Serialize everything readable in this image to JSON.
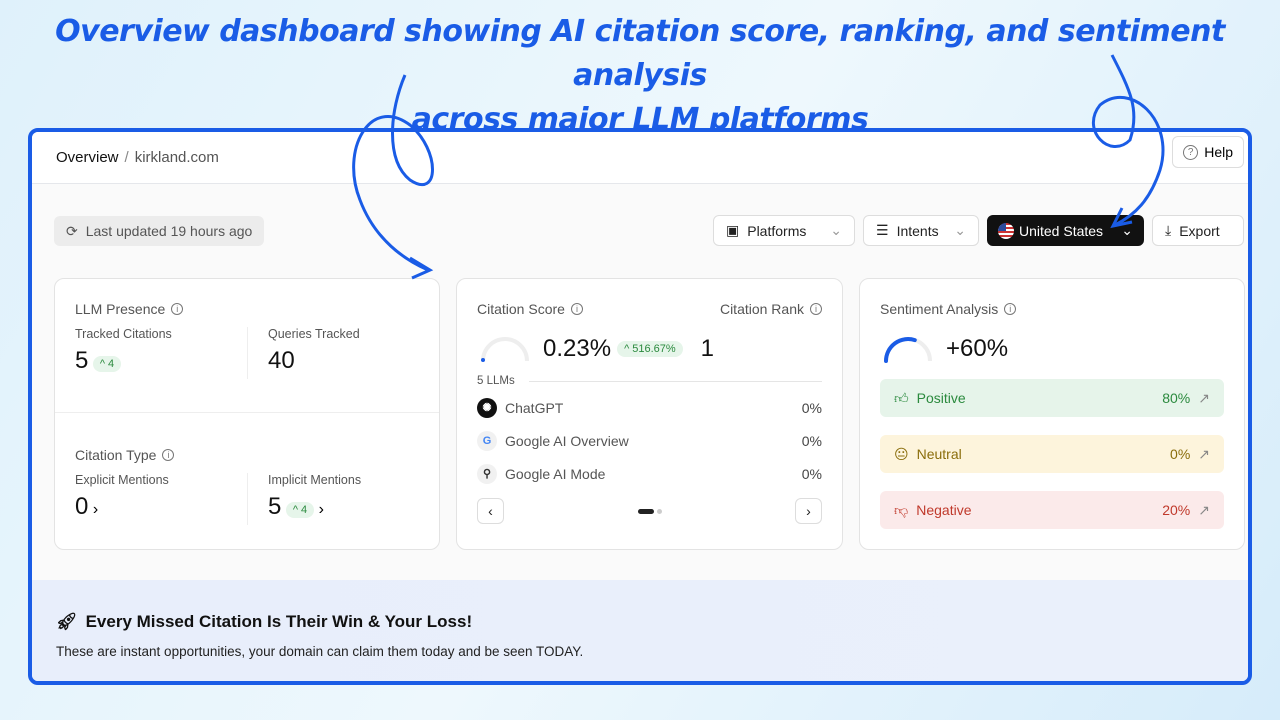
{
  "headline": {
    "line1": "Overview dashboard showing AI citation score, ranking, and sentiment analysis",
    "line2": "across major LLM platforms"
  },
  "breadcrumb": {
    "page": "Overview",
    "separator": "/",
    "domain": "kirkland.com"
  },
  "help_label": "Help",
  "last_updated": "Last updated 19 hours ago",
  "controls": {
    "platforms": "Platforms",
    "intents": "Intents",
    "country": "United States",
    "export": "Export"
  },
  "llm_presence": {
    "title": "LLM Presence",
    "tracked_label": "Tracked Citations",
    "tracked_value": "5",
    "tracked_delta": "4",
    "queries_label": "Queries Tracked",
    "queries_value": "40"
  },
  "citation_type": {
    "title": "Citation Type",
    "explicit_label": "Explicit Mentions",
    "explicit_value": "0",
    "implicit_label": "Implicit Mentions",
    "implicit_value": "5",
    "implicit_delta": "4"
  },
  "citation": {
    "score_title": "Citation Score",
    "score_value": "0.23%",
    "score_delta": "516.67%",
    "rank_title": "Citation Rank",
    "rank_value": "1",
    "llm_count": "5 LLMs",
    "platforms": [
      {
        "name": "ChatGPT",
        "value": "0%",
        "icon": "chatgpt-icon"
      },
      {
        "name": "Google AI Overview",
        "value": "0%",
        "icon": "google-icon"
      },
      {
        "name": "Google AI Mode",
        "value": "0%",
        "icon": "google-ai-mode-icon"
      }
    ],
    "carousel_page": 1,
    "carousel_pages": 2
  },
  "sentiment": {
    "title": "Sentiment Analysis",
    "value": "+60%",
    "gauge_fraction": 0.6,
    "items": [
      {
        "label": "Positive",
        "value": "80%",
        "color": "#2b8a3e",
        "bg": "#e6f4ea"
      },
      {
        "label": "Neutral",
        "value": "0%",
        "color": "#8a6d0b",
        "bg": "#fdf4dc"
      },
      {
        "label": "Negative",
        "value": "20%",
        "color": "#c0392b",
        "bg": "#fbeaea"
      }
    ]
  },
  "promo": {
    "title": "Every Missed Citation Is Their Win & Your Loss!",
    "text": "These are instant opportunities, your domain can claim them today and be seen TODAY."
  },
  "colors": {
    "accent": "#1a5ce6"
  }
}
